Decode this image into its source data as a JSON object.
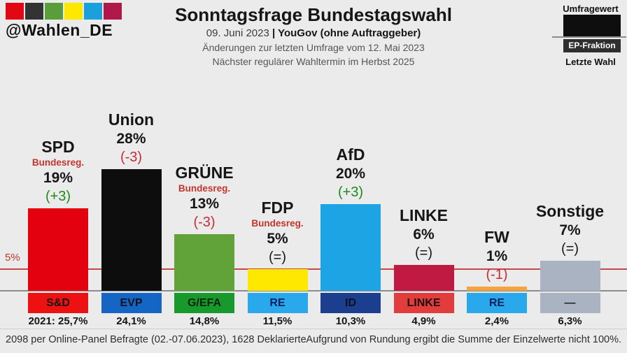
{
  "logo": {
    "handle": "@Wahlen_DE",
    "squares": [
      "#e30613",
      "#333333",
      "#5a9e3c",
      "#ffe800",
      "#1ba0dc",
      "#b0184a"
    ]
  },
  "header": {
    "title": "Sonntagsfrage Bundestagswahl",
    "date": "09. Juni 2023",
    "separator": " | ",
    "source": "YouGov (ohne Auftraggeber)",
    "change_note": "Änderungen zur letzten Umfrage vom 12. Mai 2023",
    "next_election": "Nächster regulärer Wahltermin im Herbst 2025"
  },
  "legend": {
    "top_label": "Umfragewert",
    "band_label": "EP-Fraktion",
    "bottom_label": "Letzte Wahl",
    "bar_color": "#0e0e0e",
    "band_color": "#2f2f2f",
    "band_text_color": "#ffffff"
  },
  "threshold": {
    "label": "5%",
    "value": 5,
    "line_color": "#c64949"
  },
  "footer": {
    "left": "2098 per Online-Panel Befragte (02.-07.06.2023), 1628 Deklarierte",
    "right": "Aufgrund von Rundung ergibt die Summe der Einzelwerte nicht 100%."
  },
  "chart_data": {
    "type": "bar",
    "title": "Sonntagsfrage Bundestagswahl",
    "xlabel": "",
    "ylabel": "",
    "unit": "%",
    "ylim": [
      0,
      30
    ],
    "grid": false,
    "threshold_line": 5,
    "categories": [
      "SPD",
      "Union",
      "GRÜNE",
      "FDP",
      "AfD",
      "LINKE",
      "FW",
      "Sonstige"
    ],
    "values": [
      19,
      28,
      13,
      5,
      20,
      6,
      1,
      7
    ],
    "change_colors": {
      "up": "#1e8a1e",
      "down": "#c92a3a",
      "same": "#1a1a1a"
    },
    "axis": {
      "zero_line_color": "#8c8c8c"
    },
    "series": [
      {
        "party": "SPD",
        "value": 19,
        "value_label": "19%",
        "change": "(+3)",
        "change_dir": "up",
        "gov": "Bundesreg.",
        "bar_color": "#e3000f",
        "faction": "S&D",
        "faction_color": "#ee1111",
        "faction_text": "#161616",
        "last": "2021: 25,7%"
      },
      {
        "party": "Union",
        "value": 28,
        "value_label": "28%",
        "change": "(-3)",
        "change_dir": "down",
        "gov": "",
        "bar_color": "#0d0d0d",
        "faction": "EVP",
        "faction_color": "#1565c4",
        "faction_text": "#10131c",
        "last": "24,1%"
      },
      {
        "party": "GRÜNE",
        "value": 13,
        "value_label": "13%",
        "change": "(-3)",
        "change_dir": "down",
        "gov": "Bundesreg.",
        "bar_color": "#61a338",
        "faction": "G/EFA",
        "faction_color": "#17992b",
        "faction_text": "#0e2410",
        "last": "14,8%"
      },
      {
        "party": "FDP",
        "value": 5,
        "value_label": "5%",
        "change": "(=)",
        "change_dir": "same",
        "gov": "Bundesreg.",
        "bar_color": "#ffe800",
        "faction": "RE",
        "faction_color": "#29a8ec",
        "faction_text": "#0a2060",
        "last": "11,5%"
      },
      {
        "party": "AfD",
        "value": 20,
        "value_label": "20%",
        "change": "(+3)",
        "change_dir": "up",
        "gov": "",
        "bar_color": "#1da4e4",
        "faction": "ID",
        "faction_color": "#1c3e8f",
        "faction_text": "#0c1020",
        "last": "10,3%"
      },
      {
        "party": "LINKE",
        "value": 6,
        "value_label": "6%",
        "change": "(=)",
        "change_dir": "same",
        "gov": "",
        "bar_color": "#c11a42",
        "faction": "LINKE",
        "faction_color": "#e23c3c",
        "faction_text": "#1c0d0d",
        "last": "4,9%"
      },
      {
        "party": "FW",
        "value": 1,
        "value_label": "1%",
        "change": "(-1)",
        "change_dir": "down",
        "gov": "",
        "bar_color": "#f6a23c",
        "faction": "RE",
        "faction_color": "#29a8ec",
        "faction_text": "#0a2060",
        "last": "2,4%"
      },
      {
        "party": "Sonstige",
        "value": 7,
        "value_label": "7%",
        "change": "(=)",
        "change_dir": "same",
        "gov": "",
        "bar_color": "#a9b3c2",
        "faction": "—",
        "faction_color": "#a9b3c2",
        "faction_text": "#222222",
        "last": "6,3%"
      }
    ]
  }
}
